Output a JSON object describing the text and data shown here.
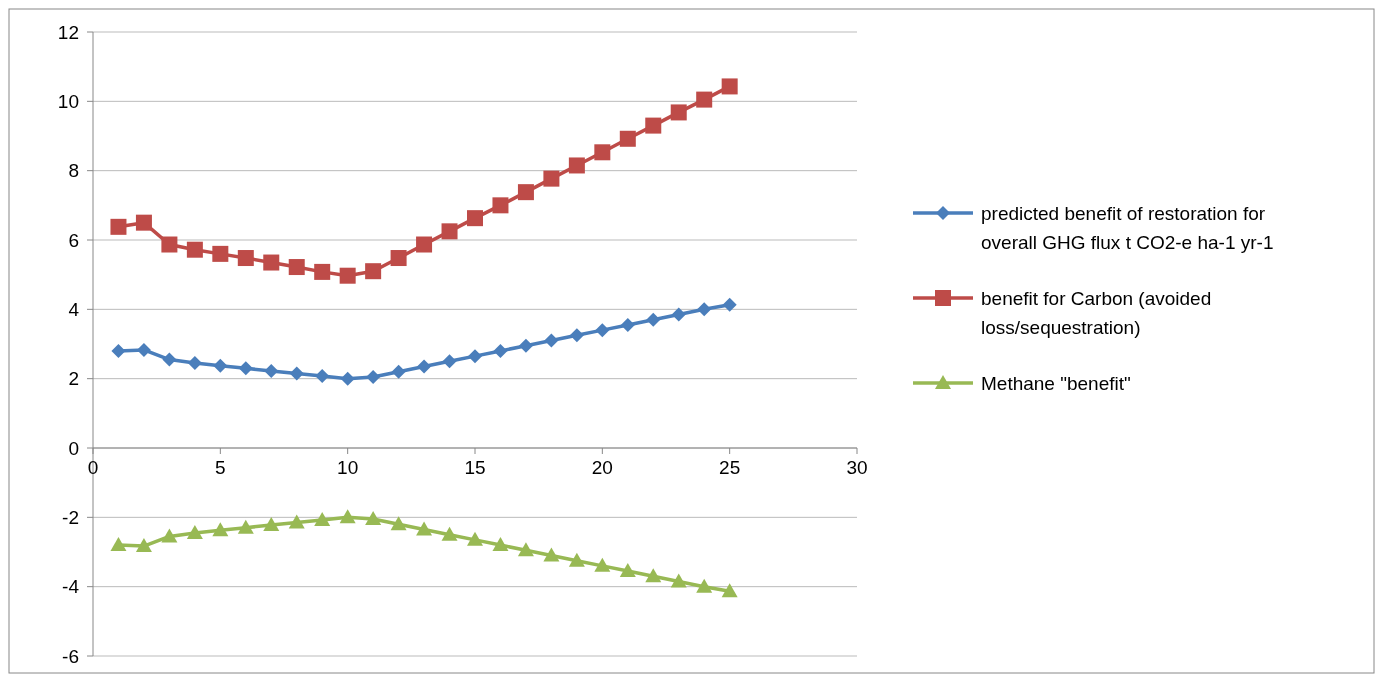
{
  "chart_data": {
    "type": "line",
    "x": [
      1,
      2,
      3,
      4,
      5,
      6,
      7,
      8,
      9,
      10,
      11,
      12,
      13,
      14,
      15,
      16,
      17,
      18,
      19,
      20,
      21,
      22,
      23,
      24,
      25
    ],
    "series": [
      {
        "name": "predicted benefit of restoration for overall GHG flux t CO2-e ha-1 yr-1",
        "color": "#4a7ebb",
        "marker": "diamond",
        "values": [
          2.8,
          2.83,
          2.55,
          2.45,
          2.37,
          2.3,
          2.22,
          2.15,
          2.08,
          2.0,
          2.05,
          2.2,
          2.35,
          2.5,
          2.65,
          2.8,
          2.95,
          3.1,
          3.25,
          3.4,
          3.55,
          3.7,
          3.85,
          4.0,
          4.13
        ]
      },
      {
        "name": "benefit for Carbon (avoided loss/sequestration)",
        "color": "#be4b48",
        "marker": "square",
        "values": [
          6.38,
          6.5,
          5.87,
          5.72,
          5.6,
          5.48,
          5.35,
          5.22,
          5.08,
          4.97,
          5.1,
          5.48,
          5.87,
          6.25,
          6.63,
          7.0,
          7.38,
          7.77,
          8.15,
          8.53,
          8.92,
          9.3,
          9.68,
          10.05,
          10.43
        ]
      },
      {
        "name": "Methane \"benefit\"",
        "color": "#98b954",
        "marker": "triangle",
        "values": [
          -2.8,
          -2.83,
          -2.55,
          -2.45,
          -2.37,
          -2.3,
          -2.22,
          -2.15,
          -2.08,
          -2.0,
          -2.05,
          -2.2,
          -2.35,
          -2.5,
          -2.65,
          -2.8,
          -2.95,
          -3.1,
          -3.25,
          -3.4,
          -3.55,
          -3.7,
          -3.85,
          -4.0,
          -4.13
        ]
      }
    ],
    "xlim": [
      0,
      30
    ],
    "xticks": [
      0,
      5,
      10,
      15,
      20,
      25,
      30
    ],
    "ylim": [
      -6,
      12
    ],
    "yticks": [
      -6,
      -4,
      -2,
      0,
      2,
      4,
      6,
      8,
      10,
      12
    ],
    "grid": "y",
    "legend": "right",
    "line_style": "solid"
  }
}
